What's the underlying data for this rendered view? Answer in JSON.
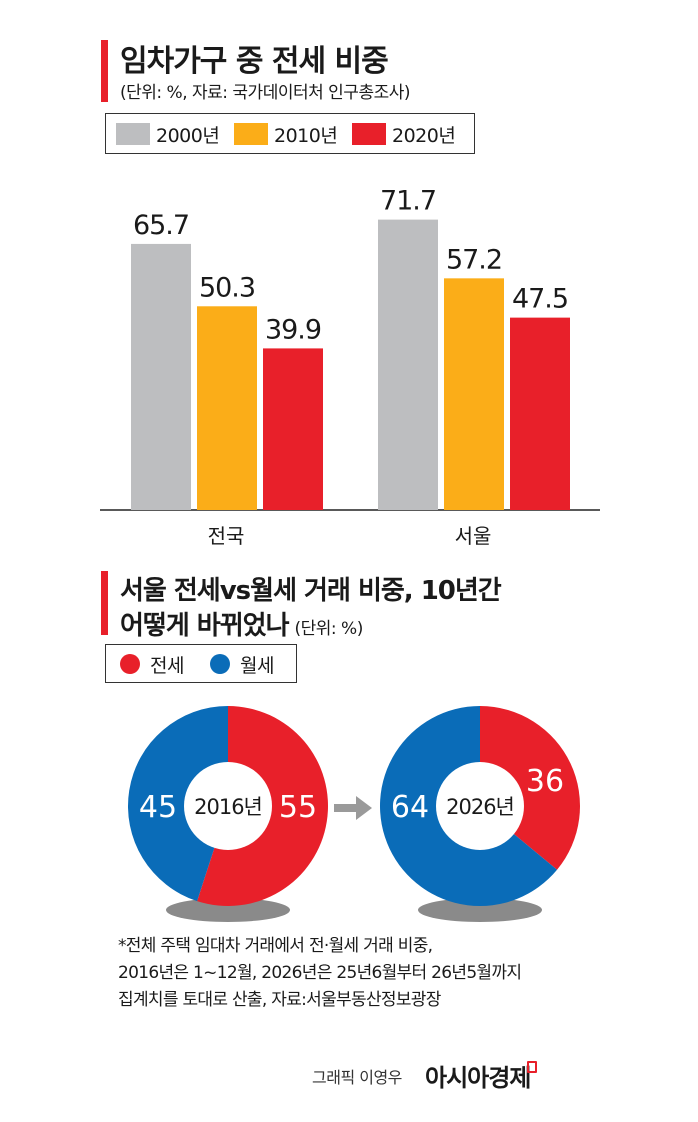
{
  "section1": {
    "title": "임차가구 중 전세 비중",
    "subtitle": "(단위: %, 자료: 국가데이터처 인구총조사)"
  },
  "section2": {
    "title_line1": "서울 전세vs월세 거래 비중, 10년간",
    "title_line2": "어떻게 바뀌었나",
    "unit": "(단위: %)"
  },
  "chart_data": [
    {
      "type": "bar",
      "categories": [
        "전국",
        "서울"
      ],
      "series": [
        {
          "name": "2000년",
          "values": [
            65.7,
            71.7
          ],
          "color": "#bdbec0"
        },
        {
          "name": "2010년",
          "values": [
            50.3,
            57.2
          ],
          "color": "#fbad18"
        },
        {
          "name": "2020년",
          "values": [
            39.9,
            47.5
          ],
          "color": "#e8202a"
        }
      ],
      "ylim": [
        0,
        80
      ],
      "legend": "top"
    },
    {
      "type": "pie",
      "donut": true,
      "legend": [
        {
          "name": "전세",
          "color": "#e8202a"
        },
        {
          "name": "월세",
          "color": "#0a6cb8"
        }
      ],
      "charts": [
        {
          "center_label": "2016년",
          "slices": [
            {
              "name": "전세",
              "value": 55,
              "label": "55"
            },
            {
              "name": "월세",
              "value": 45,
              "label": "45"
            }
          ]
        },
        {
          "center_label": "2026년",
          "slices": [
            {
              "name": "전세",
              "value": 36,
              "label": "36"
            },
            {
              "name": "월세",
              "value": 64,
              "label": "64"
            }
          ]
        }
      ]
    }
  ],
  "note": {
    "line1": "*전체 주택 임대차 거래에서 전·월세 거래 비중,",
    "line2": "2016년은 1~12월, 2026년은 25년6월부터 26년5월까지",
    "line3": "집계치를 토대로 산출, 자료:서울부동산정보광장"
  },
  "credit": {
    "text": "그래픽 이영우",
    "brand": "아시아경제"
  },
  "colors": {
    "accent": "#e8202a",
    "blue": "#0a6cb8",
    "gray": "#bdbec0",
    "orange": "#fbad18"
  }
}
